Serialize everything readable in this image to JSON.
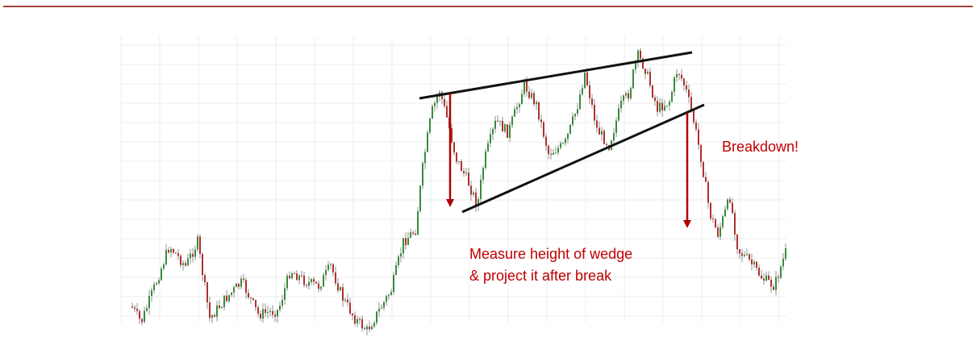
{
  "annotations": {
    "breakdown": "Breakdown!",
    "measure_line1": "Measure height of wedge",
    "measure_line2": "& project it after break"
  }
}
